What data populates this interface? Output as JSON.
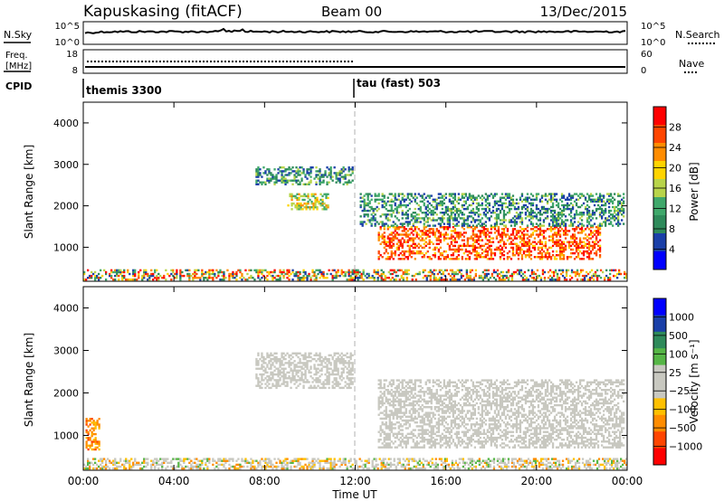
{
  "header": {
    "station": "Kapuskasing (fitACF)",
    "beam": "Beam 00",
    "date": "13/Dec/2015"
  },
  "status_panels": {
    "nsky_label": "N.Sky",
    "nsky_ticks": [
      "10^5",
      "10^0"
    ],
    "nsearch_label": "N.Search",
    "freq_label": "Freq.",
    "freq_unit": "[MHz]",
    "freq_ticks": [
      "18",
      "8"
    ],
    "nave_label": "Nave",
    "nave_ticks": [
      "60",
      "0"
    ],
    "cpid_label": "CPID",
    "cpid_segments": [
      {
        "label": "themis 3300",
        "start_hour": 0
      },
      {
        "label": "tau (fast) 503",
        "start_hour": 12
      }
    ]
  },
  "colors": {
    "power_scale": [
      "#0000ff",
      "#1a3fa8",
      "#2e8a5a",
      "#3fa86b",
      "#b8d44a",
      "#ffd400",
      "#ff8c00",
      "#ff4500",
      "#ff0000"
    ],
    "velocity_scale": [
      "#ff0000",
      "#ff4500",
      "#ff8c00",
      "#ffc000",
      "#c8c8c0",
      "#c8c8c0",
      "#56b646",
      "#2e8a5a",
      "#1a3fa8",
      "#0000ff"
    ],
    "gray_scatter": "#c8c8c0"
  },
  "chart_data": [
    {
      "type": "heatmap",
      "title": "",
      "xlabel": "Time UT",
      "ylabel": "Slant Range [km]",
      "colorbar_label": "Power [dB]",
      "colorbar_ticks": [
        "28",
        "24",
        "20",
        "16",
        "12",
        "8",
        "4"
      ],
      "xlim": [
        0,
        24
      ],
      "ylim": [
        180,
        4500
      ],
      "xticks": [
        "00:00",
        "04:00",
        "08:00",
        "12:00",
        "16:00",
        "20:00",
        "00:00"
      ],
      "yticks": [
        "1000",
        "2000",
        "3000",
        "4000"
      ],
      "regions": [
        {
          "t0": 0.0,
          "t1": 24.0,
          "r0": 200,
          "r1": 450,
          "level": "low-mixed"
        },
        {
          "t0": 7.6,
          "t1": 11.9,
          "r0": 2500,
          "r1": 2950,
          "level": "blue-green"
        },
        {
          "t0": 9.0,
          "t1": 10.8,
          "r0": 1900,
          "r1": 2300,
          "level": "green-yellow"
        },
        {
          "t0": 13.0,
          "t1": 22.8,
          "r0": 700,
          "r1": 1500,
          "level": "orange-red"
        },
        {
          "t0": 12.2,
          "t1": 23.8,
          "r0": 1500,
          "r1": 2300,
          "level": "blue-green"
        }
      ]
    },
    {
      "type": "heatmap",
      "title": "",
      "xlabel": "Time UT",
      "ylabel": "Slant Range [km]",
      "colorbar_label": "Velocity [m s⁻¹]",
      "colorbar_ticks": [
        "1000",
        "500",
        "100",
        "25",
        "−25",
        "−100",
        "−500",
        "−1000"
      ],
      "xlim": [
        0,
        24
      ],
      "ylim": [
        180,
        4500
      ],
      "xticks": [
        "00:00",
        "04:00",
        "08:00",
        "12:00",
        "16:00",
        "20:00",
        "00:00"
      ],
      "yticks": [
        "1000",
        "2000",
        "3000",
        "4000"
      ],
      "regions": [
        {
          "t0": 0.0,
          "t1": 24.0,
          "r0": 200,
          "r1": 450,
          "level": "gray-mixed"
        },
        {
          "t0": 0.1,
          "t1": 0.7,
          "r0": 650,
          "r1": 1400,
          "level": "orange"
        },
        {
          "t0": 7.6,
          "t1": 11.9,
          "r0": 2100,
          "r1": 2950,
          "level": "gray"
        },
        {
          "t0": 13.0,
          "t1": 23.8,
          "r0": 700,
          "r1": 2300,
          "level": "gray"
        }
      ]
    }
  ]
}
